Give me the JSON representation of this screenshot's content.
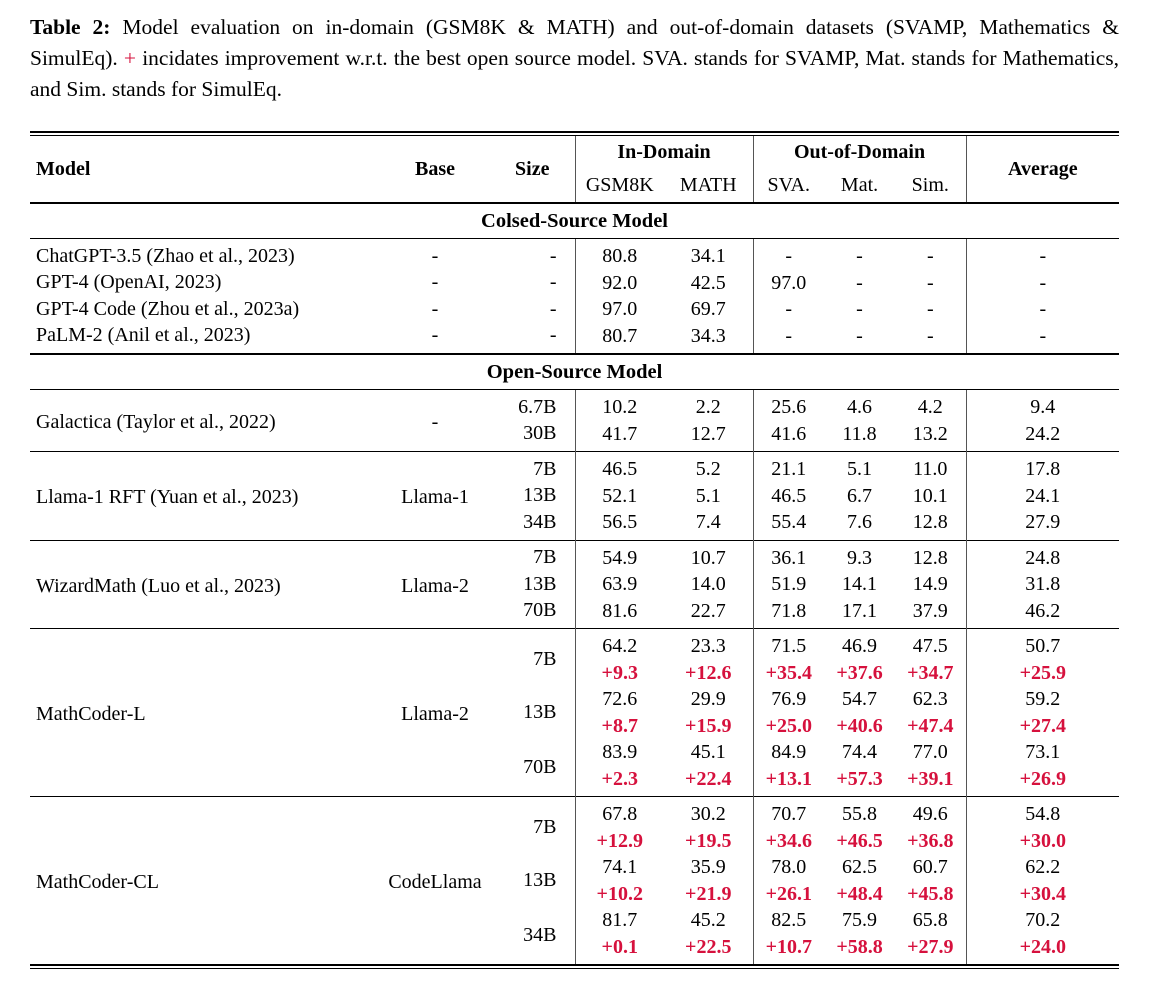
{
  "colors": {
    "accent_red": "#d6113d",
    "rule_black": "#000000",
    "vline_gray": "#555555"
  },
  "caption": {
    "label": "Table 2:",
    "before_plus": "Model evaluation on in-domain (GSM8K & MATH) and out-of-domain datasets (SVAMP, Mathematics & SimulEq).",
    "plus": "+",
    "after_plus": "incidates improvement w.r.t. the best open source model. SVA. stands for SVAMP, Mat. stands for Mathematics, and Sim. stands for SimulEq."
  },
  "table": {
    "header": {
      "model": "Model",
      "base": "Base",
      "size": "Size",
      "in_domain": "In-Domain",
      "out_of_domain": "Out-of-Domain",
      "average": "Average",
      "subcolumns": [
        "GSM8K",
        "MATH",
        "SVA.",
        "Mat.",
        "Sim."
      ]
    },
    "sections": [
      {
        "type": "banner",
        "label": "Colsed-Source Model"
      },
      {
        "type": "block",
        "groups": [
          {
            "model": "ChatGPT-3.5 (Zhao et al., 2023)",
            "base": "-",
            "rows": [
              {
                "size": "-",
                "values": [
                  "80.8",
                  "34.1",
                  "-",
                  "-",
                  "-",
                  "-"
                ]
              }
            ]
          },
          {
            "model": "GPT-4 (OpenAI, 2023)",
            "base": "-",
            "rows": [
              {
                "size": "-",
                "values": [
                  "92.0",
                  "42.5",
                  "97.0",
                  "-",
                  "-",
                  "-"
                ]
              }
            ]
          },
          {
            "model": "GPT-4 Code (Zhou et al., 2023a)",
            "base": "-",
            "rows": [
              {
                "size": "-",
                "values": [
                  "97.0",
                  "69.7",
                  "-",
                  "-",
                  "-",
                  "-"
                ]
              }
            ]
          },
          {
            "model": "PaLM-2 (Anil et al., 2023)",
            "base": "-",
            "rows": [
              {
                "size": "-",
                "values": [
                  "80.7",
                  "34.3",
                  "-",
                  "-",
                  "-",
                  "-"
                ]
              }
            ]
          }
        ]
      },
      {
        "type": "banner",
        "label": "Open-Source Model"
      },
      {
        "type": "block",
        "groups": [
          {
            "model": "Galactica (Taylor et al., 2022)",
            "base": "-",
            "rows": [
              {
                "size": "6.7B",
                "values": [
                  "10.2",
                  "2.2",
                  "25.6",
                  "4.6",
                  "4.2",
                  "9.4"
                ]
              },
              {
                "size": "30B",
                "values": [
                  "41.7",
                  "12.7",
                  "41.6",
                  "11.8",
                  "13.2",
                  "24.2"
                ]
              }
            ]
          }
        ]
      },
      {
        "type": "block",
        "groups": [
          {
            "model": "Llama-1 RFT (Yuan et al., 2023)",
            "base": "Llama-1",
            "rows": [
              {
                "size": "7B",
                "values": [
                  "46.5",
                  "5.2",
                  "21.1",
                  "5.1",
                  "11.0",
                  "17.8"
                ]
              },
              {
                "size": "13B",
                "values": [
                  "52.1",
                  "5.1",
                  "46.5",
                  "6.7",
                  "10.1",
                  "24.1"
                ]
              },
              {
                "size": "34B",
                "values": [
                  "56.5",
                  "7.4",
                  "55.4",
                  "7.6",
                  "12.8",
                  "27.9"
                ]
              }
            ]
          }
        ]
      },
      {
        "type": "block",
        "groups": [
          {
            "model": "WizardMath (Luo et al., 2023)",
            "base": "Llama-2",
            "rows": [
              {
                "size": "7B",
                "values": [
                  "54.9",
                  "10.7",
                  "36.1",
                  "9.3",
                  "12.8",
                  "24.8"
                ]
              },
              {
                "size": "13B",
                "values": [
                  "63.9",
                  "14.0",
                  "51.9",
                  "14.1",
                  "14.9",
                  "31.8"
                ]
              },
              {
                "size": "70B",
                "values": [
                  "81.6",
                  "22.7",
                  "71.8",
                  "17.1",
                  "37.9",
                  "46.2"
                ]
              }
            ]
          }
        ]
      },
      {
        "type": "block",
        "groups": [
          {
            "model": "MathCoder-L",
            "base": "Llama-2",
            "rows": [
              {
                "size": "7B",
                "values": [
                  "64.2",
                  "23.3",
                  "71.5",
                  "46.9",
                  "47.5",
                  "50.7"
                ],
                "deltas": [
                  "+9.3",
                  "+12.6",
                  "+35.4",
                  "+37.6",
                  "+34.7",
                  "+25.9"
                ]
              },
              {
                "size": "13B",
                "values": [
                  "72.6",
                  "29.9",
                  "76.9",
                  "54.7",
                  "62.3",
                  "59.2"
                ],
                "deltas": [
                  "+8.7",
                  "+15.9",
                  "+25.0",
                  "+40.6",
                  "+47.4",
                  "+27.4"
                ]
              },
              {
                "size": "70B",
                "values": [
                  "83.9",
                  "45.1",
                  "84.9",
                  "74.4",
                  "77.0",
                  "73.1"
                ],
                "deltas": [
                  "+2.3",
                  "+22.4",
                  "+13.1",
                  "+57.3",
                  "+39.1",
                  "+26.9"
                ]
              }
            ]
          }
        ]
      },
      {
        "type": "block",
        "groups": [
          {
            "model": "MathCoder-CL",
            "base": "CodeLlama",
            "rows": [
              {
                "size": "7B",
                "values": [
                  "67.8",
                  "30.2",
                  "70.7",
                  "55.8",
                  "49.6",
                  "54.8"
                ],
                "deltas": [
                  "+12.9",
                  "+19.5",
                  "+34.6",
                  "+46.5",
                  "+36.8",
                  "+30.0"
                ]
              },
              {
                "size": "13B",
                "values": [
                  "74.1",
                  "35.9",
                  "78.0",
                  "62.5",
                  "60.7",
                  "62.2"
                ],
                "deltas": [
                  "+10.2",
                  "+21.9",
                  "+26.1",
                  "+48.4",
                  "+45.8",
                  "+30.4"
                ]
              },
              {
                "size": "34B",
                "values": [
                  "81.7",
                  "45.2",
                  "82.5",
                  "75.9",
                  "65.8",
                  "70.2"
                ],
                "deltas": [
                  "+0.1",
                  "+22.5",
                  "+10.7",
                  "+58.8",
                  "+27.9",
                  "+24.0"
                ]
              }
            ]
          }
        ]
      }
    ]
  }
}
